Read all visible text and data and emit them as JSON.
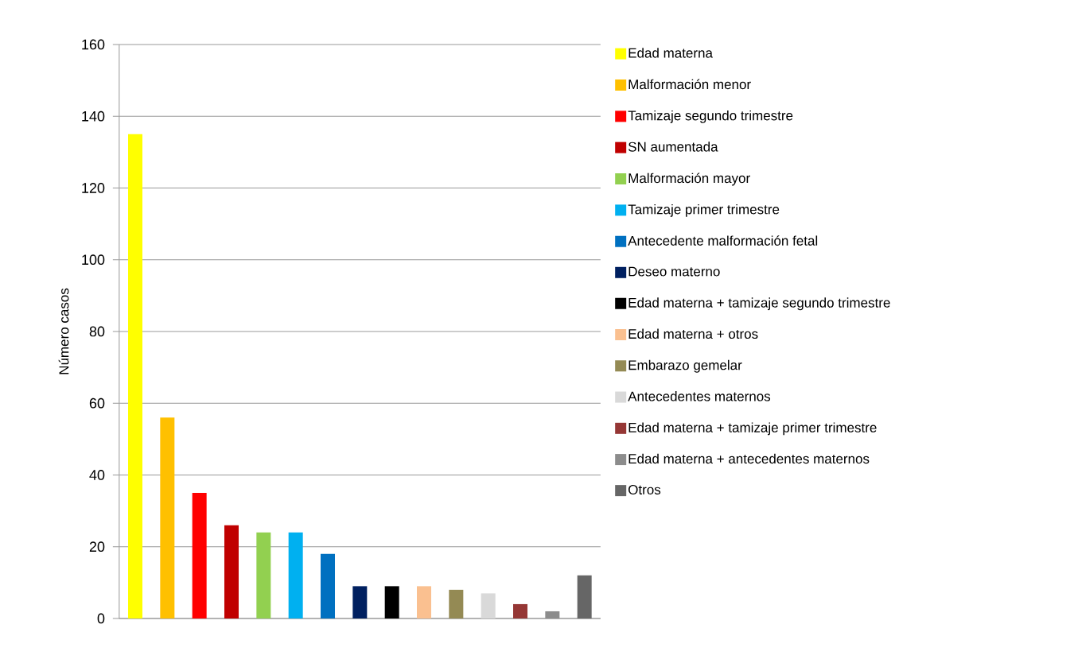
{
  "chart_data": {
    "type": "bar",
    "ylabel": "Número casos",
    "categories": [
      null,
      null,
      null,
      null,
      null,
      null,
      null,
      null,
      null,
      null,
      null,
      null,
      null,
      null,
      null
    ],
    "series": [
      {
        "name": "Edad materna",
        "color": "#ffff00",
        "values": [
          135,
          null,
          null,
          null,
          null,
          null,
          null,
          null,
          null,
          null,
          null,
          null,
          null,
          null,
          null
        ]
      },
      {
        "name": "Malformación menor",
        "color": "#ffc000",
        "values": [
          null,
          56,
          null,
          null,
          null,
          null,
          null,
          null,
          null,
          null,
          null,
          null,
          null,
          null,
          null
        ]
      },
      {
        "name": "Tamizaje segundo trimestre",
        "color": "#ff0000",
        "values": [
          null,
          null,
          35,
          null,
          null,
          null,
          null,
          null,
          null,
          null,
          null,
          null,
          null,
          null,
          null
        ]
      },
      {
        "name": "SN aumentada",
        "color": "#c00000",
        "values": [
          null,
          null,
          null,
          26,
          null,
          null,
          null,
          null,
          null,
          null,
          null,
          null,
          null,
          null,
          null
        ]
      },
      {
        "name": "Malformación mayor",
        "color": "#92d050",
        "values": [
          null,
          null,
          null,
          null,
          24,
          null,
          null,
          null,
          null,
          null,
          null,
          null,
          null,
          null,
          null
        ]
      },
      {
        "name": "Tamizaje primer  trimestre",
        "color": "#00b0f0",
        "values": [
          null,
          null,
          null,
          null,
          null,
          24,
          null,
          null,
          null,
          null,
          null,
          null,
          null,
          null,
          null
        ]
      },
      {
        "name": "Antecedente malformación fetal",
        "color": "#0070c0",
        "values": [
          null,
          null,
          null,
          null,
          null,
          null,
          18,
          null,
          null,
          null,
          null,
          null,
          null,
          null,
          null
        ]
      },
      {
        "name": "Deseo materno",
        "color": "#002060",
        "values": [
          null,
          null,
          null,
          null,
          null,
          null,
          null,
          9,
          null,
          null,
          null,
          null,
          null,
          null,
          null
        ]
      },
      {
        "name": "Edad materna + tamizaje segundo trimestre",
        "color": "#000000",
        "values": [
          null,
          null,
          null,
          null,
          null,
          null,
          null,
          null,
          9,
          null,
          null,
          null,
          null,
          null,
          null
        ]
      },
      {
        "name": "Edad materna + otros",
        "color": "#fac090",
        "values": [
          null,
          null,
          null,
          null,
          null,
          null,
          null,
          null,
          null,
          9,
          null,
          null,
          null,
          null,
          null
        ]
      },
      {
        "name": "Embarazo gemelar",
        "color": "#948a54",
        "values": [
          null,
          null,
          null,
          null,
          null,
          null,
          null,
          null,
          null,
          null,
          8,
          null,
          null,
          null,
          null
        ]
      },
      {
        "name": "Antecedentes maternos",
        "color": "#d9d9d9",
        "values": [
          null,
          null,
          null,
          null,
          null,
          null,
          null,
          null,
          null,
          null,
          null,
          7,
          null,
          null,
          null
        ]
      },
      {
        "name": "Edad materna + tamizaje primer trimestre",
        "color": "#953735",
        "values": [
          null,
          null,
          null,
          null,
          null,
          null,
          null,
          null,
          null,
          null,
          null,
          null,
          4,
          null,
          null
        ]
      },
      {
        "name": "Edad materna + antecedentes maternos",
        "color": "#8c8c8c",
        "values": [
          null,
          null,
          null,
          null,
          null,
          null,
          null,
          null,
          null,
          null,
          null,
          null,
          null,
          2,
          null
        ]
      },
      {
        "name": "Otros",
        "color": "#666666",
        "values": [
          null,
          null,
          null,
          null,
          null,
          null,
          null,
          null,
          null,
          null,
          null,
          null,
          null,
          null,
          12
        ]
      }
    ],
    "ylim": [
      0,
      160
    ],
    "yticks": [
      0,
      20,
      40,
      60,
      80,
      100,
      120,
      140,
      160
    ],
    "grid": "y",
    "legend": "right"
  }
}
